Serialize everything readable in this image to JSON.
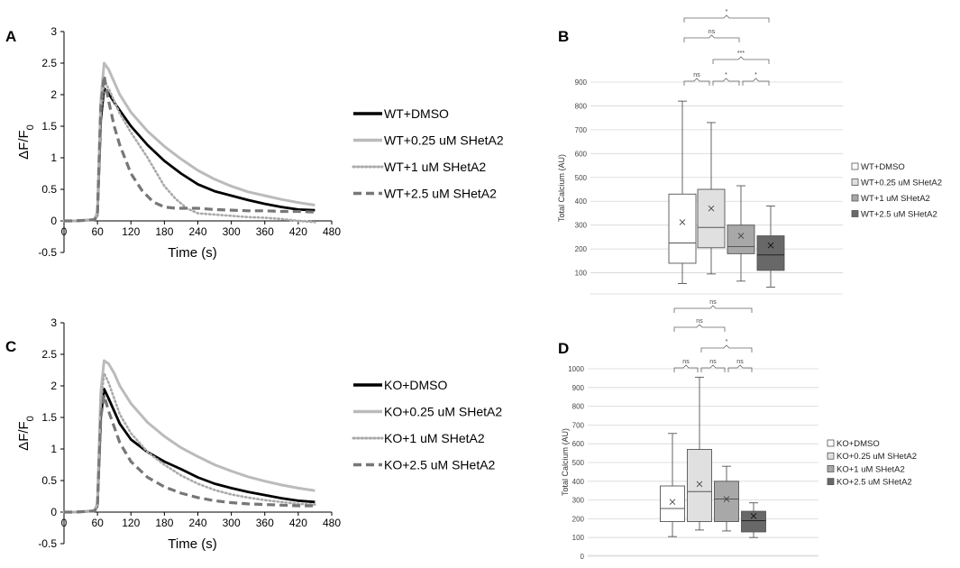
{
  "figure": {
    "labels": [
      "A",
      "B",
      "C",
      "D"
    ]
  },
  "chart_data": [
    {
      "panel": "A",
      "type": "line",
      "title": "",
      "xlabel": "Time (s)",
      "ylabel_main": "ΔF/F",
      "ylabel_sub": "0",
      "xlim": [
        0,
        480
      ],
      "ylim": [
        -0.5,
        3
      ],
      "xticks": [
        "0",
        "60",
        "120",
        "180",
        "240",
        "300",
        "360",
        "420",
        "480"
      ],
      "yticks": [
        "-0.5",
        "0",
        "0.5",
        "1",
        "1.5",
        "2",
        "2.5",
        "3"
      ],
      "legend_position": "right",
      "series": [
        {
          "name": "WT+DMSO",
          "color": "#000000",
          "style": "solid",
          "x": [
            0,
            20,
            40,
            55,
            60,
            66,
            72,
            80,
            90,
            100,
            120,
            150,
            180,
            210,
            240,
            270,
            300,
            330,
            360,
            390,
            420,
            450
          ],
          "y": [
            0,
            0,
            0.01,
            0.02,
            0.1,
            1.6,
            2.1,
            2.02,
            1.88,
            1.75,
            1.5,
            1.2,
            0.95,
            0.75,
            0.58,
            0.47,
            0.4,
            0.33,
            0.27,
            0.22,
            0.18,
            0.17
          ]
        },
        {
          "name": "WT+0.25 uM SHetA2",
          "color": "#bbbbbb",
          "style": "solid",
          "x": [
            0,
            20,
            40,
            55,
            60,
            66,
            72,
            80,
            90,
            100,
            120,
            150,
            180,
            210,
            240,
            270,
            300,
            330,
            360,
            390,
            420,
            450
          ],
          "y": [
            0,
            0,
            0.01,
            0.02,
            0.15,
            1.9,
            2.5,
            2.4,
            2.2,
            2.0,
            1.72,
            1.42,
            1.18,
            0.98,
            0.8,
            0.66,
            0.55,
            0.46,
            0.4,
            0.34,
            0.29,
            0.25
          ]
        },
        {
          "name": "WT+1 uM SHetA2",
          "color": "#aaaaaa",
          "style": "dotted",
          "x": [
            0,
            20,
            40,
            55,
            60,
            66,
            72,
            80,
            90,
            100,
            120,
            150,
            180,
            200,
            220,
            240,
            270,
            300,
            330,
            360,
            390,
            420,
            450
          ],
          "y": [
            0,
            0,
            0.01,
            0.02,
            0.1,
            1.7,
            2.2,
            2.1,
            1.9,
            1.7,
            1.4,
            1.0,
            0.55,
            0.35,
            0.2,
            0.12,
            0.1,
            0.08,
            0.06,
            0.05,
            0.03,
            0.0,
            -0.02
          ]
        },
        {
          "name": "WT+2.5 uM SHetA2",
          "color": "#777777",
          "style": "dashed",
          "x": [
            0,
            20,
            40,
            55,
            60,
            66,
            72,
            80,
            90,
            100,
            120,
            140,
            160,
            180,
            200,
            240,
            270,
            300,
            330,
            360,
            390,
            420,
            450
          ],
          "y": [
            0,
            0,
            0.01,
            0.02,
            0.1,
            1.8,
            2.3,
            1.9,
            1.5,
            1.2,
            0.75,
            0.48,
            0.3,
            0.22,
            0.2,
            0.2,
            0.18,
            0.17,
            0.16,
            0.16,
            0.15,
            0.15,
            0.14
          ]
        }
      ]
    },
    {
      "panel": "B",
      "type": "box",
      "title": "",
      "xlabel": "",
      "ylabel": "Total Calcium (AU)",
      "ylim": [
        0,
        900
      ],
      "yticks": [
        "100",
        "200",
        "300",
        "400",
        "500",
        "600",
        "700",
        "800",
        "900"
      ],
      "grid": true,
      "legend_position": "right",
      "series": [
        {
          "name": "WT+DMSO",
          "color": "#ffffff",
          "min": 55,
          "q1": 140,
          "median": 225,
          "q3": 430,
          "max": 820,
          "mean": 312
        },
        {
          "name": "WT+0.25 uM SHetA2",
          "color": "#e0e0e0",
          "min": 95,
          "q1": 205,
          "median": 290,
          "q3": 450,
          "max": 730,
          "mean": 370
        },
        {
          "name": "WT+1 uM SHetA2",
          "color": "#a8a8a8",
          "min": 65,
          "q1": 180,
          "median": 210,
          "q3": 300,
          "max": 465,
          "mean": 255
        },
        {
          "name": "WT+2.5 uM SHetA2",
          "color": "#686868",
          "min": 40,
          "q1": 110,
          "median": 175,
          "q3": 255,
          "max": 380,
          "mean": 215
        }
      ],
      "significance": [
        {
          "from": 0,
          "to": 1,
          "label": "ns"
        },
        {
          "from": 1,
          "to": 2,
          "label": "*"
        },
        {
          "from": 2,
          "to": 3,
          "label": "*"
        },
        {
          "from": 1,
          "to": 3,
          "label": "***"
        },
        {
          "from": 0,
          "to": 2,
          "label": "ns"
        },
        {
          "from": 0,
          "to": 3,
          "label": "*"
        }
      ]
    },
    {
      "panel": "C",
      "type": "line",
      "title": "",
      "xlabel": "Time (s)",
      "ylabel_main": "ΔF/F",
      "ylabel_sub": "0",
      "xlim": [
        0,
        480
      ],
      "ylim": [
        -0.5,
        3
      ],
      "xticks": [
        "0",
        "60",
        "120",
        "180",
        "240",
        "300",
        "360",
        "420",
        "480"
      ],
      "yticks": [
        "-0.5",
        "0",
        "0.5",
        "1",
        "1.5",
        "2",
        "2.5",
        "3"
      ],
      "legend_position": "right",
      "series": [
        {
          "name": "KO+DMSO",
          "color": "#000000",
          "style": "solid",
          "x": [
            0,
            20,
            40,
            55,
            60,
            66,
            72,
            80,
            90,
            100,
            120,
            150,
            180,
            210,
            240,
            270,
            300,
            330,
            360,
            390,
            420,
            450
          ],
          "y": [
            0,
            0,
            0.01,
            0.02,
            0.1,
            1.5,
            1.95,
            1.8,
            1.6,
            1.4,
            1.15,
            0.95,
            0.8,
            0.68,
            0.55,
            0.45,
            0.38,
            0.32,
            0.27,
            0.22,
            0.18,
            0.16
          ]
        },
        {
          "name": "KO+0.25 uM SHetA2",
          "color": "#bbbbbb",
          "style": "solid",
          "x": [
            0,
            20,
            40,
            55,
            60,
            66,
            72,
            80,
            90,
            100,
            120,
            150,
            180,
            210,
            240,
            270,
            300,
            330,
            360,
            390,
            420,
            450
          ],
          "y": [
            0,
            0,
            0.01,
            0.02,
            0.15,
            1.9,
            2.4,
            2.35,
            2.2,
            2.0,
            1.72,
            1.42,
            1.2,
            1.02,
            0.88,
            0.75,
            0.65,
            0.56,
            0.49,
            0.43,
            0.38,
            0.34
          ]
        },
        {
          "name": "KO+1 uM SHetA2",
          "color": "#aaaaaa",
          "style": "dotted",
          "x": [
            0,
            20,
            40,
            55,
            60,
            66,
            72,
            80,
            90,
            100,
            120,
            150,
            180,
            210,
            240,
            270,
            300,
            330,
            360,
            390,
            420,
            450
          ],
          "y": [
            0,
            0,
            0.01,
            0.02,
            0.1,
            1.7,
            2.2,
            2.05,
            1.8,
            1.55,
            1.25,
            0.95,
            0.75,
            0.58,
            0.45,
            0.35,
            0.28,
            0.23,
            0.19,
            0.16,
            0.13,
            0.12
          ]
        },
        {
          "name": "KO+2.5 uM SHetA2",
          "color": "#777777",
          "style": "dashed",
          "x": [
            0,
            20,
            40,
            55,
            60,
            66,
            72,
            80,
            90,
            100,
            120,
            150,
            180,
            210,
            240,
            270,
            300,
            330,
            360,
            390,
            420,
            450
          ],
          "y": [
            0,
            0,
            0.01,
            0.02,
            0.1,
            1.5,
            1.85,
            1.6,
            1.35,
            1.1,
            0.8,
            0.55,
            0.4,
            0.3,
            0.23,
            0.18,
            0.15,
            0.13,
            0.12,
            0.11,
            0.1,
            0.1
          ]
        }
      ]
    },
    {
      "panel": "D",
      "type": "box",
      "title": "",
      "xlabel": "",
      "ylabel": "Total Calcium (AU)",
      "ylim": [
        0,
        1000
      ],
      "yticks": [
        "0",
        "100",
        "200",
        "300",
        "400",
        "500",
        "600",
        "700",
        "800",
        "900",
        "1000"
      ],
      "grid": true,
      "legend_position": "right",
      "series": [
        {
          "name": "KO+DMSO",
          "color": "#ffffff",
          "min": 105,
          "q1": 185,
          "median": 255,
          "q3": 375,
          "max": 655,
          "mean": 290
        },
        {
          "name": "KO+0.25 uM SHetA2",
          "color": "#e0e0e0",
          "min": 140,
          "q1": 185,
          "median": 345,
          "q3": 570,
          "max": 955,
          "mean": 385
        },
        {
          "name": "KO+1 uM SHetA2",
          "color": "#a8a8a8",
          "min": 135,
          "q1": 185,
          "median": 305,
          "q3": 400,
          "max": 480,
          "mean": 305
        },
        {
          "name": "KO+2.5 uM SHetA2",
          "color": "#686868",
          "min": 100,
          "q1": 130,
          "median": 190,
          "q3": 240,
          "max": 285,
          "mean": 215
        }
      ],
      "significance": [
        {
          "from": 0,
          "to": 1,
          "label": "ns"
        },
        {
          "from": 1,
          "to": 2,
          "label": "ns"
        },
        {
          "from": 2,
          "to": 3,
          "label": "ns"
        },
        {
          "from": 1,
          "to": 3,
          "label": "*"
        },
        {
          "from": 0,
          "to": 2,
          "label": "ns"
        },
        {
          "from": 0,
          "to": 3,
          "label": "ns"
        }
      ]
    }
  ]
}
